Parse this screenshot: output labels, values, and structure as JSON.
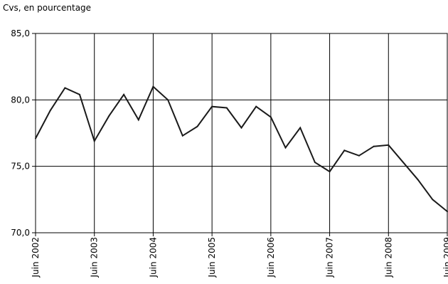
{
  "chart_data": {
    "type": "line",
    "unit_label": "Cvs, en pourcentage",
    "title": "",
    "xlabel": "",
    "ylabel": "",
    "ylim": [
      70,
      85
    ],
    "y_ticks": [
      "70,0",
      "75,0",
      "80,0",
      "85,0"
    ],
    "y_tick_values": [
      70,
      75,
      80,
      85
    ],
    "x_ticks": [
      "Juin 2002",
      "Juin 2003",
      "Juin 2004",
      "Juin 2005",
      "Juin 2006",
      "Juin 2007",
      "Juin 2008",
      "Juin 2009"
    ],
    "x_tick_values": [
      2002.5,
      2003.5,
      2004.5,
      2005.5,
      2006.5,
      2007.5,
      2008.5,
      2009.5
    ],
    "xlim": [
      2002.5,
      2009.5
    ],
    "grid": true,
    "line_color": "#1a1a1a",
    "series": [
      {
        "x": [
          2002.5,
          2002.75,
          2003.0,
          2003.25,
          2003.5,
          2003.75,
          2004.0,
          2004.25,
          2004.5,
          2004.75,
          2005.0,
          2005.25,
          2005.5,
          2005.75,
          2006.0,
          2006.25,
          2006.5,
          2006.75,
          2007.0,
          2007.25,
          2007.5,
          2007.75,
          2008.0,
          2008.25,
          2008.5,
          2009.0,
          2009.25,
          2009.5
        ],
        "values": [
          77.1,
          79.2,
          80.9,
          80.4,
          76.9,
          78.8,
          80.4,
          78.5,
          81.0,
          80.0,
          77.3,
          78.0,
          79.5,
          79.4,
          77.9,
          79.5,
          78.7,
          76.4,
          77.9,
          75.3,
          74.6,
          76.2,
          75.8,
          76.5,
          76.6,
          74.0,
          72.5,
          71.6
        ]
      }
    ]
  }
}
